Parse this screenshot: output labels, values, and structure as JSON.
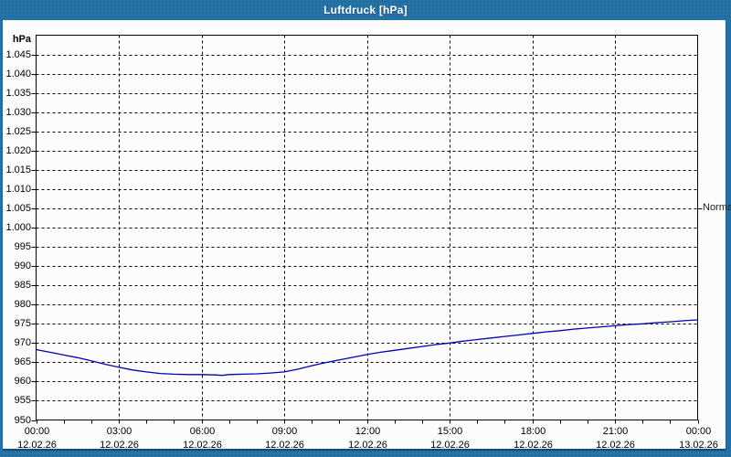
{
  "window": {
    "title": "Luftdruck [hPa]"
  },
  "colors": {
    "titlebar_blue": "#2574a9",
    "frame_blue": "#2574a9",
    "plot_background": "#fcfcfc",
    "grid_black": "#000000",
    "line_blue": "#0000b4"
  },
  "chart_data": {
    "type": "line",
    "title": "Luftdruck [hPa]",
    "xlabel": "",
    "ylabel": "hPa",
    "ylim": [
      950,
      1050
    ],
    "y_tick_step": 5,
    "y_tick_values": [
      950,
      955,
      960,
      965,
      970,
      975,
      980,
      985,
      990,
      995,
      1000,
      1005,
      1010,
      1015,
      1020,
      1025,
      1030,
      1035,
      1040,
      1045
    ],
    "y_tick_labels": [
      "950",
      "955",
      "960",
      "965",
      "970",
      "975",
      "980",
      "985",
      "990",
      "995",
      "1.000",
      "1.005",
      "1.010",
      "1.015",
      "1.020",
      "1.025",
      "1.030",
      "1.035",
      "1.040",
      "1.045"
    ],
    "xlim_hours": [
      0,
      24
    ],
    "x_major_step_hours": 3,
    "x_minor_step_hours": 1,
    "grid": true,
    "x_ticks": [
      {
        "time": "00:00",
        "date": "12.02.26"
      },
      {
        "time": "03:00",
        "date": "12.02.26"
      },
      {
        "time": "06:00",
        "date": "12.02.26"
      },
      {
        "time": "09:00",
        "date": "12.02.26"
      },
      {
        "time": "12:00",
        "date": "12.02.26"
      },
      {
        "time": "15:00",
        "date": "12.02.26"
      },
      {
        "time": "18:00",
        "date": "12.02.26"
      },
      {
        "time": "21:00",
        "date": "12.02.26"
      },
      {
        "time": "00:00",
        "date": "13.02.26"
      }
    ],
    "annotations": [
      {
        "label": "Normal",
        "value": 1005,
        "side": "right"
      }
    ],
    "series": [
      {
        "name": "Luftdruck",
        "color": "#0000b4",
        "x_hours": [
          0,
          0.5,
          1,
          1.5,
          2,
          2.5,
          3,
          3.5,
          4,
          4.5,
          5,
          5.5,
          6,
          6.5,
          6.75,
          7,
          7.5,
          8,
          8.5,
          9,
          9.5,
          10,
          10.5,
          11,
          11.5,
          12,
          12.5,
          13,
          13.5,
          14,
          14.5,
          15,
          15.5,
          16,
          16.5,
          17,
          17.5,
          18,
          18.5,
          19,
          19.5,
          20,
          20.5,
          21,
          21.5,
          22,
          22.5,
          23,
          23.5,
          24
        ],
        "values": [
          968.3,
          967.6,
          966.9,
          966.2,
          965.4,
          964.5,
          963.7,
          963.0,
          962.5,
          962.1,
          961.9,
          961.8,
          961.8,
          961.7,
          961.6,
          961.8,
          961.9,
          962.0,
          962.2,
          962.5,
          963.2,
          964.1,
          964.9,
          965.6,
          966.3,
          967.0,
          967.6,
          968.1,
          968.6,
          969.1,
          969.6,
          970.0,
          970.5,
          970.9,
          971.3,
          971.7,
          972.1,
          972.5,
          972.9,
          973.2,
          973.6,
          973.9,
          974.2,
          974.5,
          974.8,
          975.0,
          975.3,
          975.5,
          975.8,
          976.0
        ]
      }
    ]
  }
}
